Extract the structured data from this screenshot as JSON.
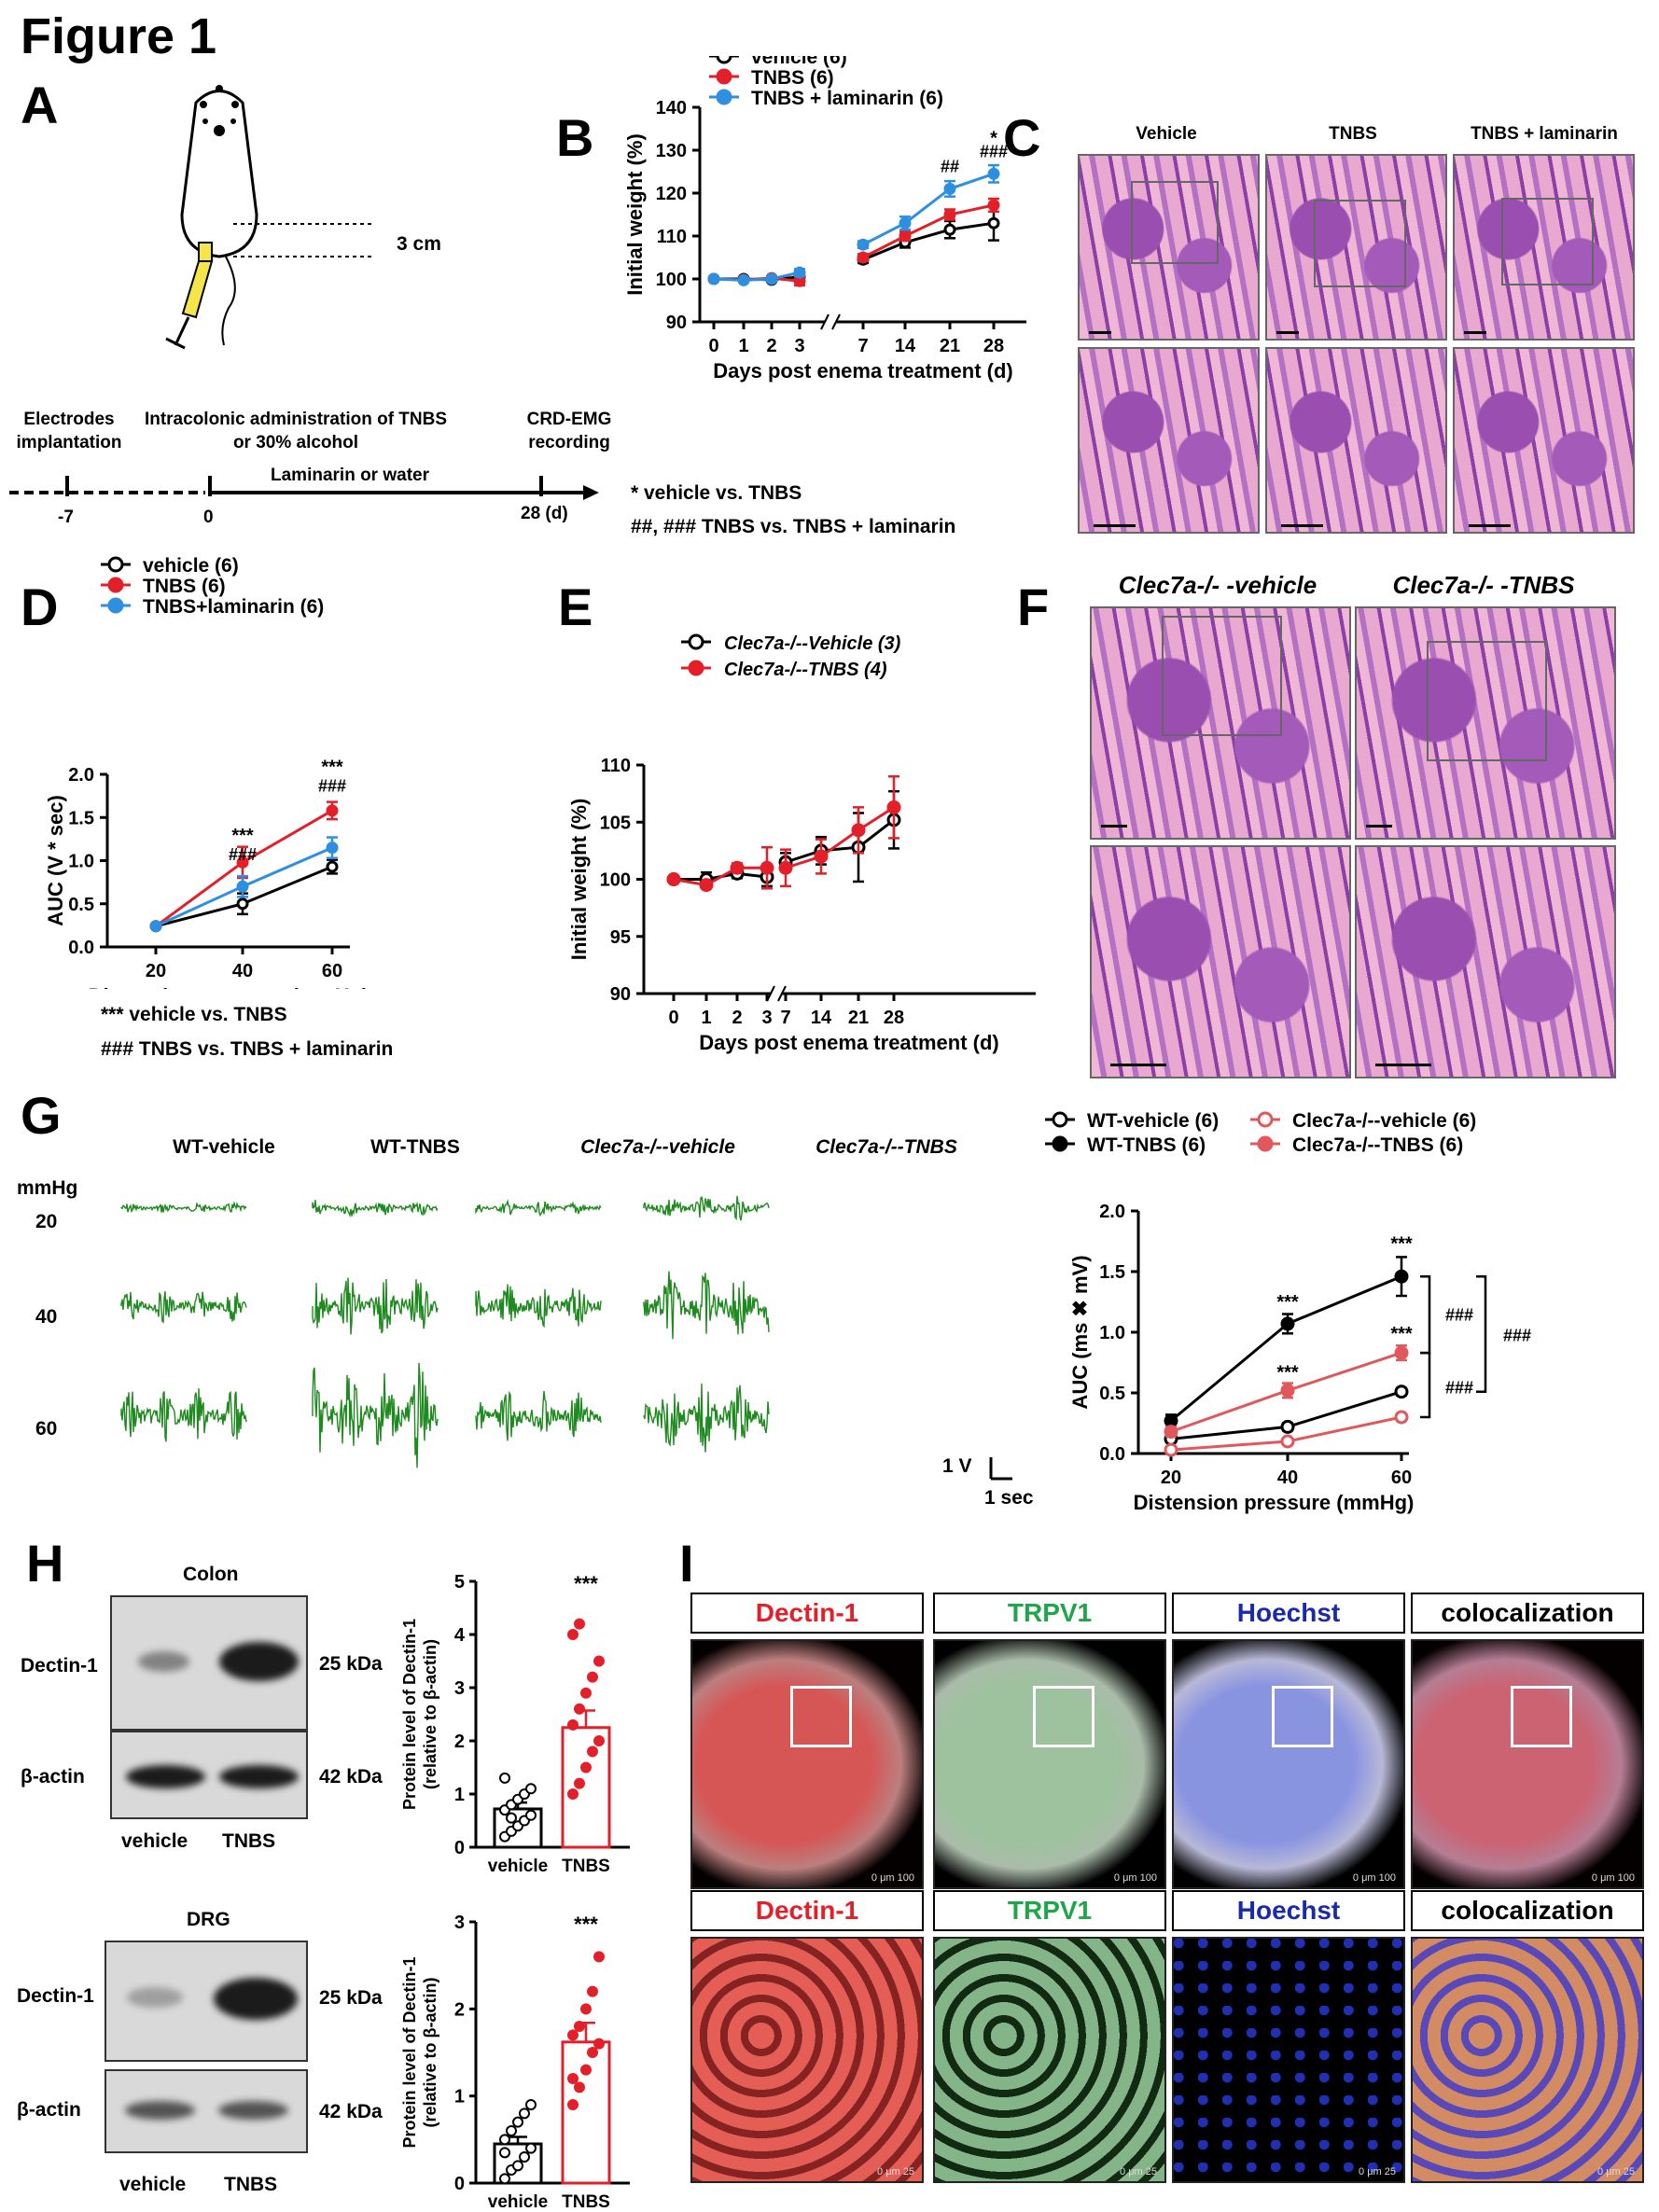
{
  "figure_title": "Figure 1",
  "panels": {
    "A": {
      "label": "A",
      "distance": "3 cm",
      "timeline": {
        "points": [
          "Electrodes implantation",
          "Intracolonic administration of TNBS or 30% alcohol",
          "CRD-EMG recording"
        ],
        "treatment": "Laminarin or water",
        "ticks": [
          "-7",
          "0",
          "28 (d)"
        ]
      }
    },
    "B": {
      "label": "B",
      "footnote1": "* vehicle vs. TNBS",
      "footnote2": "##, ### TNBS vs. TNBS + laminarin"
    },
    "C": {
      "label": "C",
      "columns": [
        "Vehicle",
        "TNBS",
        "TNBS + laminarin"
      ]
    },
    "D": {
      "label": "D",
      "footnote1": "*** vehicle vs. TNBS",
      "footnote2": "### TNBS vs. TNBS + laminarin"
    },
    "E": {
      "label": "E"
    },
    "F": {
      "label": "F",
      "columns": [
        "Clec7a-/- -vehicle",
        "Clec7a-/- -TNBS"
      ]
    },
    "G": {
      "label": "G",
      "columns": [
        "WT-vehicle",
        "WT-TNBS",
        "Clec7a-/--vehicle",
        "Clec7a-/--TNBS"
      ],
      "unit_label": "mmHg",
      "rows": [
        "20",
        "40",
        "60"
      ],
      "scale_v": "1 V",
      "scale_t": "1 sec"
    },
    "H": {
      "label": "H",
      "colon_title": "Colon",
      "drg_title": "DRG",
      "protein1": "Dectin-1",
      "protein2": "β-actin",
      "kda1": "25 kDa",
      "kda2": "42 kDa",
      "lanes": [
        "vehicle",
        "TNBS"
      ]
    },
    "I": {
      "label": "I",
      "channels": [
        "Dectin-1",
        "TRPV1",
        "Hoechst",
        "colocalization"
      ],
      "channel_colors": [
        "#e3202a",
        "#1fa64a",
        "#1a2ba8",
        "#000000"
      ],
      "scale_top": "0 μm 100",
      "scale_bottom": "0 μm 25"
    }
  },
  "chart_data": [
    {
      "id": "B",
      "type": "line",
      "ylabel": "Initial weight (%)",
      "xlabel": "Days post enema treatment (d)",
      "x": [
        0,
        1,
        2,
        3,
        7,
        14,
        21,
        28
      ],
      "ylim": [
        90,
        140
      ],
      "yticks": [
        90,
        100,
        110,
        120,
        130,
        140
      ],
      "series": [
        {
          "name": "vehicle (6)",
          "color": "#000000",
          "marker": "open",
          "values": [
            100,
            100,
            99.8,
            100.5,
            104.5,
            108.5,
            111.5,
            113
          ],
          "err": [
            0,
            0.4,
            0.4,
            1,
            0.8,
            1.2,
            2,
            4
          ]
        },
        {
          "name": "TNBS (6)",
          "color": "#e3202a",
          "marker": "filled",
          "values": [
            100,
            99.8,
            100.2,
            99.5,
            105,
            110,
            115,
            117.2
          ],
          "err": [
            0,
            0.4,
            0.4,
            1,
            0.8,
            1,
            1.2,
            1.5
          ]
        },
        {
          "name": "TNBS + laminarin (6)",
          "color": "#2e8fe0",
          "marker": "filled",
          "values": [
            100,
            99.7,
            100,
            101.5,
            108,
            113,
            121,
            124.5
          ],
          "err": [
            0,
            0.4,
            0.5,
            0.8,
            0.8,
            1.5,
            1.8,
            2
          ]
        }
      ],
      "annotations": [
        "##",
        "*",
        "###"
      ]
    },
    {
      "id": "D",
      "type": "line",
      "ylabel": "AUC (V * sec)",
      "xlabel": "Distension pressure (mmHg)",
      "x": [
        20,
        40,
        60
      ],
      "ylim": [
        0,
        2
      ],
      "yticks": [
        0.0,
        0.5,
        1.0,
        1.5,
        2.0
      ],
      "series": [
        {
          "name": "vehicle (6)",
          "color": "#000000",
          "marker": "open",
          "values": [
            0.24,
            0.5,
            0.93
          ],
          "err": [
            0.02,
            0.12,
            0.08
          ]
        },
        {
          "name": "TNBS (6)",
          "color": "#e3202a",
          "marker": "filled",
          "values": [
            0.24,
            0.98,
            1.58
          ],
          "err": [
            0.02,
            0.18,
            0.1
          ]
        },
        {
          "name": "TNBS+laminarin (6)",
          "color": "#2e8fe0",
          "marker": "filled",
          "values": [
            0.24,
            0.7,
            1.15
          ],
          "err": [
            0.02,
            0.12,
            0.12
          ]
        }
      ],
      "annotations": [
        "***",
        "###",
        "***",
        "###"
      ]
    },
    {
      "id": "E",
      "type": "line",
      "ylabel": "Initial weight (%)",
      "xlabel": "Days post enema treatment (d)",
      "x": [
        0,
        1,
        2,
        3,
        7,
        14,
        21,
        28
      ],
      "ylim": [
        90,
        110
      ],
      "yticks": [
        90,
        95,
        100,
        105,
        110
      ],
      "series": [
        {
          "name": "Clec7a-/--Vehicle (3)",
          "color": "#000000",
          "marker": "open",
          "values": [
            100,
            100,
            100.5,
            100.2,
            101.5,
            102.5,
            102.8,
            105.2
          ],
          "err": [
            0,
            0.6,
            0.4,
            0.8,
            0.8,
            1.2,
            3,
            2.5
          ]
        },
        {
          "name": "Clec7a-/--TNBS (4)",
          "color": "#e3202a",
          "marker": "filled",
          "values": [
            100,
            99.5,
            101,
            101,
            101,
            102,
            104.3,
            106.3
          ],
          "err": [
            0,
            0.3,
            0.4,
            1.8,
            1.6,
            1.5,
            2,
            2.7
          ]
        }
      ]
    },
    {
      "id": "G",
      "type": "line",
      "ylabel": "AUC (ms ✖ mV)",
      "xlabel": "Distension pressure (mmHg)",
      "x": [
        20,
        40,
        60
      ],
      "ylim": [
        0,
        2
      ],
      "yticks": [
        0.0,
        0.5,
        1.0,
        1.5,
        2.0
      ],
      "series": [
        {
          "name": "WT-vehicle (6)",
          "color": "#000000",
          "marker": "open",
          "values": [
            0.12,
            0.22,
            0.51
          ],
          "err": [
            0.02,
            0.03,
            0.03
          ]
        },
        {
          "name": "WT-TNBS (6)",
          "color": "#000000",
          "marker": "filled",
          "values": [
            0.27,
            1.07,
            1.46
          ],
          "err": [
            0.05,
            0.08,
            0.16
          ]
        },
        {
          "name": "Clec7a-/--vehicle (6)",
          "color": "#e0585b",
          "marker": "open",
          "values": [
            0.03,
            0.1,
            0.3
          ],
          "err": [
            0.01,
            0.02,
            0.03
          ]
        },
        {
          "name": "Clec7a-/--TNBS (6)",
          "color": "#e0585b",
          "marker": "filled",
          "values": [
            0.18,
            0.52,
            0.83
          ],
          "err": [
            0.04,
            0.06,
            0.06
          ]
        }
      ],
      "annotations": [
        "***",
        "***",
        "***",
        "***",
        "###",
        "###",
        "###"
      ]
    },
    {
      "id": "H-colon",
      "type": "bar",
      "ylabel": "Protein level of Dectin-1 (relative to β-actin)",
      "categories": [
        "vehicle",
        "TNBS"
      ],
      "values": [
        0.72,
        2.25
      ],
      "err": [
        0.12,
        0.32
      ],
      "ylim": [
        0,
        5
      ],
      "yticks": [
        0,
        1,
        2,
        3,
        4,
        5
      ],
      "points": [
        [
          0.2,
          0.3,
          0.4,
          0.5,
          0.6,
          0.7,
          0.8,
          0.9,
          1.0,
          1.1,
          1.3,
          0.55
        ],
        [
          1.0,
          1.2,
          1.5,
          1.8,
          2.0,
          2.3,
          2.6,
          2.9,
          3.2,
          3.5,
          4.0,
          4.2
        ]
      ],
      "annotation": "***"
    },
    {
      "id": "H-drg",
      "type": "bar",
      "ylabel": "Protein level of Dectin-1 (relative to β-actin)",
      "categories": [
        "vehicle",
        "TNBS"
      ],
      "values": [
        0.45,
        1.62
      ],
      "err": [
        0.08,
        0.22
      ],
      "ylim": [
        0,
        3
      ],
      "yticks": [
        0,
        1,
        2,
        3
      ],
      "points": [
        [
          0.05,
          0.15,
          0.2,
          0.3,
          0.4,
          0.5,
          0.6,
          0.7,
          0.8,
          0.9,
          0.35
        ],
        [
          0.9,
          1.1,
          1.3,
          1.5,
          1.6,
          1.7,
          1.8,
          2.0,
          2.2,
          2.6,
          1.2
        ]
      ],
      "annotation": "***"
    }
  ]
}
